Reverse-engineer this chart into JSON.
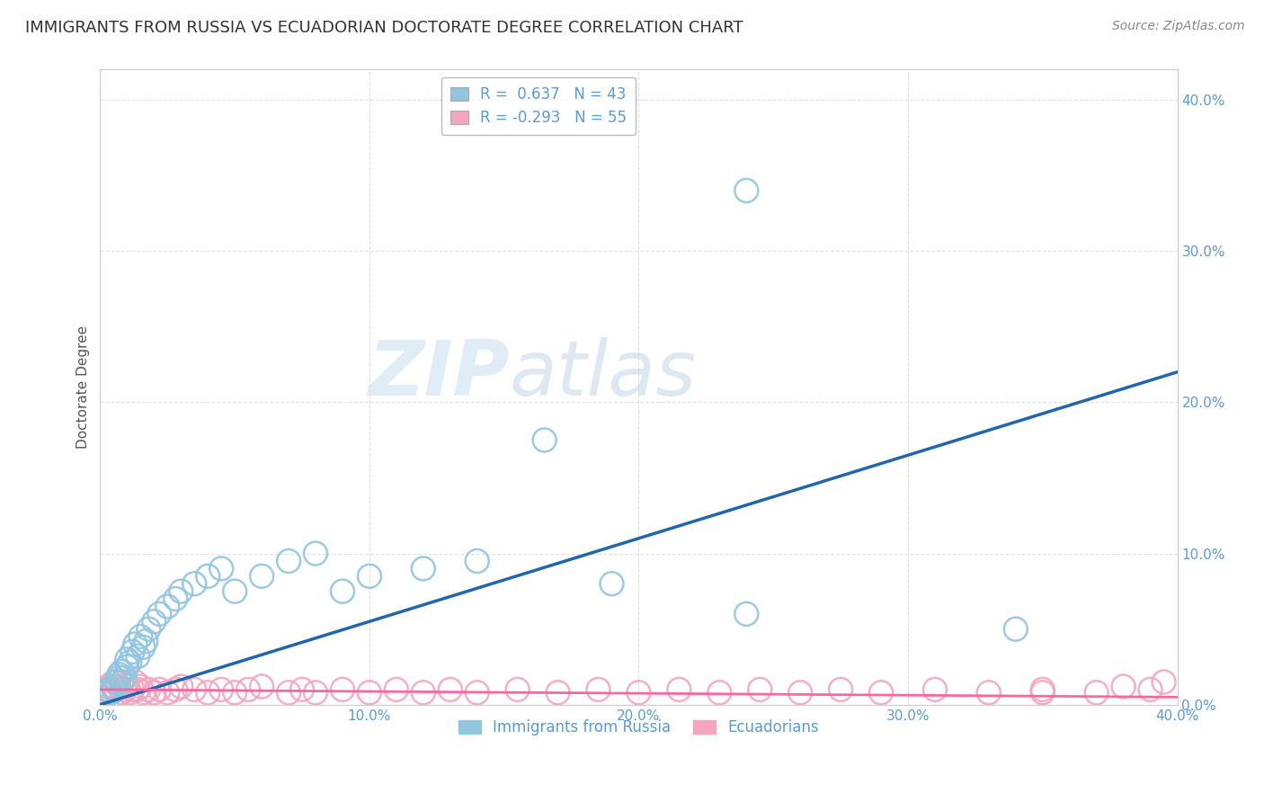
{
  "title": "IMMIGRANTS FROM RUSSIA VS ECUADORIAN DOCTORATE DEGREE CORRELATION CHART",
  "source": "Source: ZipAtlas.com",
  "ylabel": "Doctorate Degree",
  "legend_russia": "R =  0.637   N = 43",
  "legend_ecuador": "R = -0.293   N = 55",
  "russia_color": "#92C5DE",
  "ecuador_color": "#F4A6C0",
  "russia_line_color": "#2166AC",
  "ecuador_line_color": "#F768A1",
  "watermark_zip": "ZIP",
  "watermark_atlas": "atlas",
  "russia_scatter_x": [
    0.001,
    0.002,
    0.003,
    0.004,
    0.005,
    0.005,
    0.006,
    0.007,
    0.007,
    0.008,
    0.008,
    0.009,
    0.01,
    0.01,
    0.011,
    0.012,
    0.013,
    0.014,
    0.015,
    0.016,
    0.017,
    0.018,
    0.02,
    0.022,
    0.025,
    0.028,
    0.03,
    0.035,
    0.04,
    0.045,
    0.05,
    0.06,
    0.07,
    0.08,
    0.09,
    0.1,
    0.12,
    0.14,
    0.165,
    0.19,
    0.24,
    0.24,
    0.34
  ],
  "russia_scatter_y": [
    0.005,
    0.008,
    0.01,
    0.008,
    0.01,
    0.012,
    0.015,
    0.018,
    0.02,
    0.015,
    0.022,
    0.018,
    0.025,
    0.03,
    0.028,
    0.035,
    0.04,
    0.032,
    0.045,
    0.038,
    0.042,
    0.05,
    0.055,
    0.06,
    0.065,
    0.07,
    0.075,
    0.08,
    0.085,
    0.09,
    0.075,
    0.085,
    0.095,
    0.1,
    0.075,
    0.085,
    0.09,
    0.095,
    0.175,
    0.08,
    0.06,
    0.34,
    0.05
  ],
  "ecuador_scatter_x": [
    0.001,
    0.002,
    0.003,
    0.004,
    0.005,
    0.006,
    0.007,
    0.008,
    0.009,
    0.01,
    0.011,
    0.012,
    0.013,
    0.014,
    0.015,
    0.016,
    0.018,
    0.02,
    0.022,
    0.025,
    0.028,
    0.03,
    0.035,
    0.04,
    0.045,
    0.05,
    0.055,
    0.06,
    0.07,
    0.075,
    0.08,
    0.09,
    0.1,
    0.11,
    0.12,
    0.13,
    0.14,
    0.155,
    0.17,
    0.185,
    0.2,
    0.215,
    0.23,
    0.245,
    0.26,
    0.275,
    0.29,
    0.31,
    0.33,
    0.35,
    0.37,
    0.39,
    0.395,
    0.35,
    0.38
  ],
  "ecuador_scatter_y": [
    0.008,
    0.01,
    0.012,
    0.008,
    0.015,
    0.01,
    0.012,
    0.008,
    0.01,
    0.012,
    0.008,
    0.01,
    0.015,
    0.01,
    0.012,
    0.008,
    0.01,
    0.008,
    0.01,
    0.008,
    0.01,
    0.012,
    0.01,
    0.008,
    0.01,
    0.008,
    0.01,
    0.012,
    0.008,
    0.01,
    0.008,
    0.01,
    0.008,
    0.01,
    0.008,
    0.01,
    0.008,
    0.01,
    0.008,
    0.01,
    0.008,
    0.01,
    0.008,
    0.01,
    0.008,
    0.01,
    0.008,
    0.01,
    0.008,
    0.01,
    0.008,
    0.01,
    0.015,
    0.008,
    0.012
  ],
  "russia_line_x": [
    0.0,
    0.4
  ],
  "russia_line_y": [
    0.0,
    0.22
  ],
  "ecuador_line_x": [
    0.0,
    0.4
  ],
  "ecuador_line_y": [
    0.01,
    0.005
  ],
  "xlim": [
    0.0,
    0.4
  ],
  "ylim": [
    0.0,
    0.42
  ],
  "xticks": [
    0.0,
    0.1,
    0.2,
    0.3,
    0.4
  ],
  "yticks": [
    0.0,
    0.1,
    0.2,
    0.3,
    0.4
  ],
  "background_color": "#FFFFFF",
  "title_fontsize": 13,
  "source_fontsize": 10,
  "axis_tick_color": "#5B9BD5",
  "ylabel_color": "#555555",
  "grid_color": "#DDDDDD"
}
